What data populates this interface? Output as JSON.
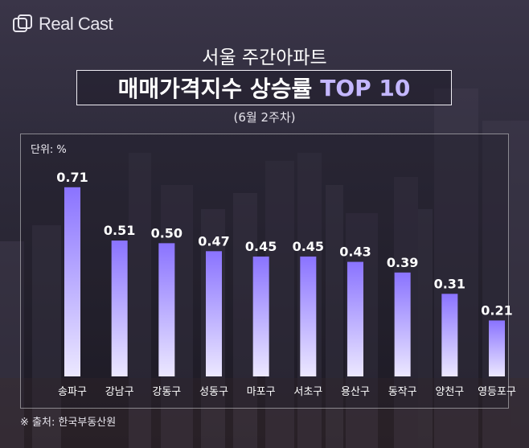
{
  "brand": {
    "name": "Real Cast"
  },
  "header": {
    "subtitle": "서울 주간아파트",
    "title_main": "매매가격지수 상승률",
    "title_accent": "TOP 10",
    "date": "(6월 2주차)"
  },
  "unit_label": "단위: %",
  "source": "※ 출처: 한국부동산원",
  "colors": {
    "bar_top": "#8a73ff",
    "bar_bottom": "#ece8ff",
    "accent": "#c4b7ff"
  },
  "chart_data": {
    "type": "bar",
    "title": "매매가격지수 상승률 TOP 10",
    "categories": [
      "송파구",
      "강남구",
      "강동구",
      "성동구",
      "마포구",
      "서초구",
      "용산구",
      "동작구",
      "양천구",
      "영등포구"
    ],
    "values": [
      0.71,
      0.51,
      0.5,
      0.47,
      0.45,
      0.45,
      0.43,
      0.39,
      0.31,
      0.21
    ],
    "value_labels": [
      "0.71",
      "0.51",
      "0.50",
      "0.47",
      "0.45",
      "0.45",
      "0.43",
      "0.39",
      "0.31",
      "0.21"
    ],
    "ylim": [
      0,
      0.8
    ],
    "grid": false,
    "legend": "none"
  }
}
